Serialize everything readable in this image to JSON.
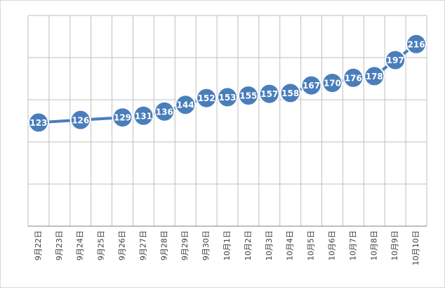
{
  "chart_data": {
    "type": "line",
    "categories": [
      "9月22日",
      "9月23日",
      "9月24日",
      "9月25日",
      "9月26日",
      "9月27日",
      "9月28日",
      "9月29日",
      "9月30日",
      "10月1日",
      "10月2日",
      "10月3日",
      "10月4日",
      "10月5日",
      "10月6日",
      "10月7日",
      "10月8日",
      "10月9日",
      "10月10日"
    ],
    "series": [
      {
        "color": "#4a7ebb",
        "values": [
          123,
          null,
          126,
          null,
          129,
          131,
          136,
          144,
          152,
          153,
          155,
          157,
          158,
          167,
          170,
          176,
          178,
          197,
          216
        ]
      }
    ],
    "ylim": [
      0,
      250
    ],
    "yticks": [
      0,
      50,
      100,
      150,
      200,
      250
    ],
    "ytick_labels": false,
    "grid": true,
    "connect_gaps": true
  }
}
